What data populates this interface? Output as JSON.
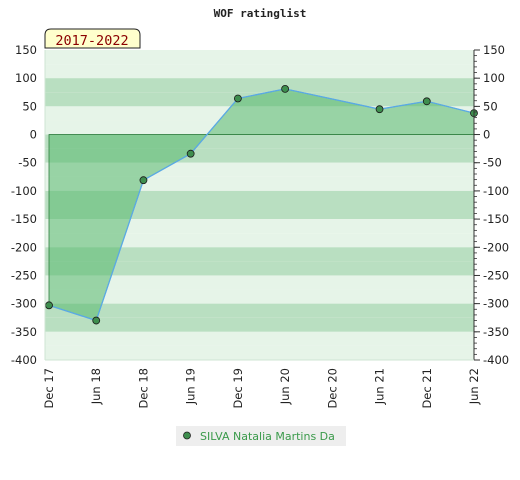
{
  "chart_data": {
    "type": "area",
    "title": "WOF ratinglist",
    "badge": "2017-2022",
    "x_ticks": [
      "Dec 17",
      "Jun 18",
      "Dec 18",
      "Jun 19",
      "Dec 19",
      "Jun 20",
      "Dec 20",
      "Jun 21",
      "Dec 21",
      "Jun 22"
    ],
    "ylim": [
      -400,
      150
    ],
    "y_ticks": [
      150,
      100,
      50,
      0,
      -50,
      -100,
      -150,
      -200,
      -250,
      -300,
      -350,
      -400
    ],
    "series": [
      {
        "name": "SILVA Natalia Martins Da",
        "points": [
          {
            "x": "Dec 17",
            "y": -303
          },
          {
            "x": "Jun 18",
            "y": -330
          },
          {
            "x": "Dec 18",
            "y": -81
          },
          {
            "x": "Jun 19",
            "y": -34
          },
          {
            "x": "Dec 19",
            "y": 64
          },
          {
            "x": "Jun 20",
            "y": 81
          },
          {
            "x": "Jun 21",
            "y": 45
          },
          {
            "x": "Dec 21",
            "y": 59
          },
          {
            "x": "Jun 22",
            "y": 38
          }
        ]
      }
    ],
    "colors": {
      "band_dark": "#b9dfc1",
      "band_light": "#e6f4e8",
      "fill": "#58b86e",
      "line": "#5aa9e6",
      "marker": "#3e8e4e",
      "legend_text": "#3a9a4a"
    },
    "legend_position": "bottom-center",
    "grid": false
  }
}
